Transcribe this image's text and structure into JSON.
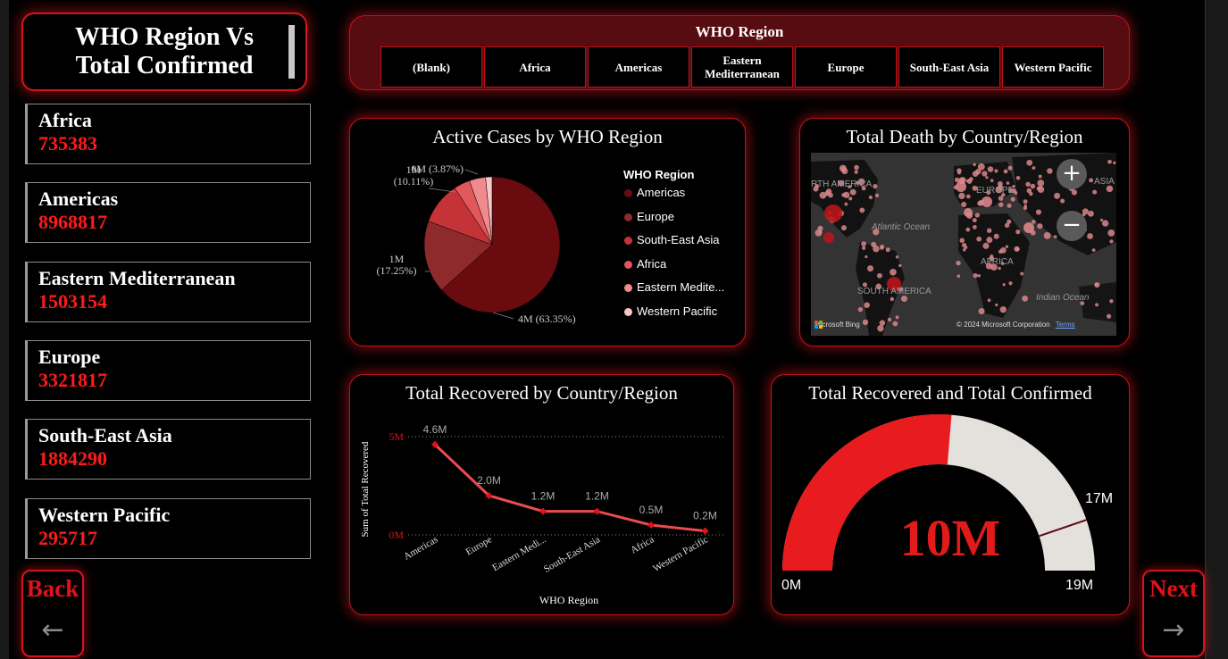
{
  "page_title": "WHO Region Vs Total Confirmed",
  "region_cards": [
    {
      "name": "Africa",
      "value": "735383"
    },
    {
      "name": "Americas",
      "value": "8968817"
    },
    {
      "name": "Eastern Mediterranean",
      "value": "1503154"
    },
    {
      "name": "Europe",
      "value": "3321817"
    },
    {
      "name": "South-East Asia",
      "value": "1884290"
    },
    {
      "name": "Western Pacific",
      "value": "295717"
    }
  ],
  "nav": {
    "back_label": "Back",
    "next_label": "Next"
  },
  "slicer": {
    "title": "WHO Region",
    "options": [
      "(Blank)",
      "Africa",
      "Americas",
      "Eastern Mediterranean",
      "Europe",
      "South-East Asia",
      "Western Pacific"
    ]
  },
  "colors": {
    "accent": "#d5141c",
    "value_red": "#ff1a1a",
    "pie": [
      "#6a0c0f",
      "#8e2a2c",
      "#c53238",
      "#e2575c",
      "#f08a8d",
      "#f6c7c8"
    ],
    "line": "#e94b4f",
    "gauge_fill": "#e81b1e",
    "gauge_track": "#e4e0dc"
  },
  "map": {
    "title": "Total Death by Country/Region",
    "labels": {
      "north_america": "RTH AMERICA",
      "europe": "EUROPE",
      "asia": "ASIA",
      "atlantic": "Atlantic Ocean",
      "africa": "AFRICA",
      "south_america": "SOUTH AMERICA",
      "indian": "Indian Ocean"
    },
    "zoom_in": "+",
    "zoom_out": "−",
    "bing": "Microsoft Bing",
    "copyright": "© 2024 Microsoft Corporation",
    "terms": "Terms"
  },
  "chart_data": [
    {
      "type": "pie",
      "title": "Active Cases by WHO Region",
      "legend_title": "WHO Region",
      "legend_position": "right",
      "legend_labels": [
        "Americas",
        "Europe",
        "South-East Asia",
        "Africa",
        "Eastern Medite...",
        "Western Pacific"
      ],
      "categories": [
        "Americas",
        "Europe",
        "South-East Asia",
        "Africa",
        "Eastern Mediterranean",
        "Western Pacific"
      ],
      "values": [
        63.35,
        17.25,
        10.11,
        3.87,
        3.87,
        1.55
      ],
      "data_labels": [
        {
          "category": "Americas",
          "value": "4M",
          "pct": "(63.35%)"
        },
        {
          "category": "Europe",
          "value": "1M",
          "pct": "(17.25%)"
        },
        {
          "category": "South-East Asia",
          "value": "1M",
          "pct": "(10.11%)"
        },
        {
          "category": "Africa",
          "value": "0M",
          "pct": "(3.87%)"
        }
      ]
    },
    {
      "type": "line",
      "title": "Total Recovered by Country/Region",
      "xlabel": "WHO Region",
      "ylabel": "Sum of Total Recovered",
      "categories": [
        "Americas",
        "Europe",
        "Eastern Medi...",
        "South-East Asia",
        "Africa",
        "Western Pacific"
      ],
      "values": [
        4.6,
        2.0,
        1.2,
        1.2,
        0.5,
        0.2
      ],
      "value_labels": [
        "4.6M",
        "2.0M",
        "1.2M",
        "1.2M",
        "0.5M",
        "0.2M"
      ],
      "yticks": [
        {
          "value": 0,
          "label": "0M"
        },
        {
          "value": 5,
          "label": "5M"
        }
      ],
      "ylim": [
        0,
        5.5
      ],
      "grid": true
    },
    {
      "type": "gauge",
      "title": "Total Recovered and Total Confirmed",
      "value": 10,
      "value_label": "10M",
      "target": 17,
      "target_label": "17M",
      "min": 0,
      "min_label": "0M",
      "max": 19,
      "max_label": "19M"
    }
  ]
}
